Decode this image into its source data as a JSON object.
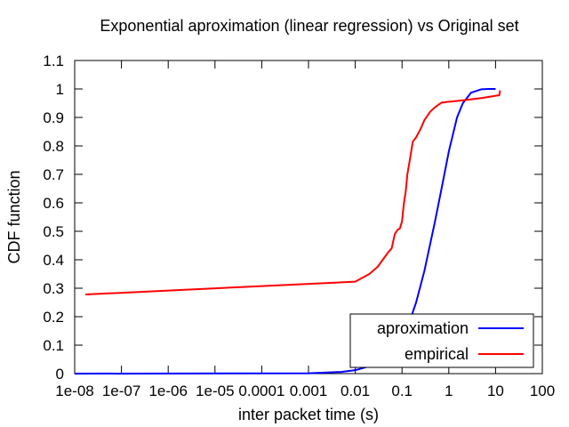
{
  "chart_data": {
    "type": "line",
    "title": "Exponential aproximation (linear regression) vs Original set",
    "xlabel": "inter packet time (s)",
    "ylabel": "CDF function",
    "x_scale": "log",
    "xlim": [
      1e-08,
      100
    ],
    "ylim": [
      0,
      1.1
    ],
    "x_ticks": [
      {
        "value": 1e-08,
        "label": "1e-08"
      },
      {
        "value": 1e-07,
        "label": "1e-07"
      },
      {
        "value": 1e-06,
        "label": "1e-06"
      },
      {
        "value": 1e-05,
        "label": "1e-05"
      },
      {
        "value": 0.0001,
        "label": "0.0001"
      },
      {
        "value": 0.001,
        "label": "0.001"
      },
      {
        "value": 0.01,
        "label": "0.01"
      },
      {
        "value": 0.1,
        "label": "0.1"
      },
      {
        "value": 1,
        "label": "1"
      },
      {
        "value": 10,
        "label": "10"
      },
      {
        "value": 100,
        "label": "100"
      }
    ],
    "y_ticks": [
      {
        "value": 0,
        "label": "0"
      },
      {
        "value": 0.1,
        "label": "0.1"
      },
      {
        "value": 0.2,
        "label": "0.2"
      },
      {
        "value": 0.3,
        "label": "0.3"
      },
      {
        "value": 0.4,
        "label": "0.4"
      },
      {
        "value": 0.5,
        "label": "0.5"
      },
      {
        "value": 0.6,
        "label": "0.6"
      },
      {
        "value": 0.7,
        "label": "0.7"
      },
      {
        "value": 0.8,
        "label": "0.8"
      },
      {
        "value": 0.9,
        "label": "0.9"
      },
      {
        "value": 1,
        "label": "1"
      },
      {
        "value": 1.1,
        "label": "1.1"
      }
    ],
    "grid": false,
    "legend_position": "bottom-right",
    "series": [
      {
        "name": "aproximation",
        "color": "#0000ff",
        "x": [
          1e-08,
          0.001,
          0.005,
          0.01,
          0.02,
          0.05,
          0.1,
          0.15,
          0.2,
          0.3,
          0.5,
          0.7,
          1,
          1.5,
          2,
          3,
          5,
          7,
          10
        ],
        "y": [
          0,
          0.0012,
          0.006,
          0.012,
          0.026,
          0.066,
          0.13,
          0.19,
          0.25,
          0.36,
          0.53,
          0.65,
          0.78,
          0.9,
          0.95,
          0.987,
          0.999,
          1.0,
          1.0
        ]
      },
      {
        "name": "empirical",
        "color": "#ff0000",
        "x": [
          1.7e-08,
          0.01,
          0.02,
          0.03,
          0.05,
          0.06,
          0.07,
          0.08,
          0.09,
          0.1,
          0.105,
          0.11,
          0.12,
          0.13,
          0.15,
          0.17,
          0.2,
          0.25,
          0.3,
          0.4,
          0.5,
          0.7,
          1,
          2,
          5,
          12,
          12.5
        ],
        "y": [
          0.278,
          0.323,
          0.35,
          0.375,
          0.425,
          0.44,
          0.49,
          0.505,
          0.51,
          0.535,
          0.57,
          0.6,
          0.64,
          0.7,
          0.76,
          0.815,
          0.83,
          0.86,
          0.89,
          0.92,
          0.935,
          0.952,
          0.955,
          0.96,
          0.968,
          0.978,
          0.995
        ]
      }
    ]
  }
}
